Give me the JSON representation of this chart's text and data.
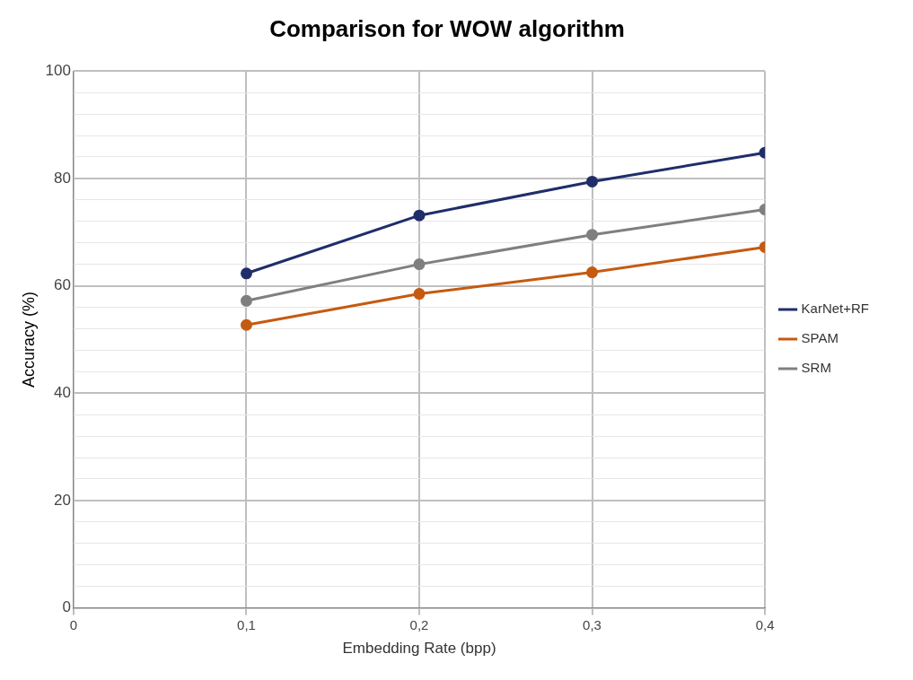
{
  "chart_data": {
    "type": "line",
    "title": "Comparison for WOW algorithm",
    "xlabel": "Embedding Rate (bpp)",
    "ylabel": "Accuracy (%)",
    "x": [
      0.1,
      0.2,
      0.3,
      0.4
    ],
    "series": [
      {
        "name": "KarNet+RF",
        "color": "#1f2d6b",
        "values": [
          62.3,
          73.1,
          79.4,
          84.8
        ]
      },
      {
        "name": "SPAM",
        "color": "#c55a11",
        "values": [
          52.7,
          58.5,
          62.5,
          67.2
        ]
      },
      {
        "name": "SRM",
        "color": "#7f7f7f",
        "values": [
          57.2,
          64.0,
          69.5,
          74.2
        ]
      }
    ],
    "xlim": [
      0,
      0.4
    ],
    "xticks": [
      0,
      {
        "value": 0.1,
        "label": "0,1"
      },
      {
        "value": 0.2,
        "label": "0,2"
      },
      {
        "value": 0.3,
        "label": "0,3"
      },
      {
        "value": 0.4,
        "label": "0,4"
      }
    ],
    "ylim": [
      0,
      100
    ],
    "yticks": [
      0,
      {
        "value": 4,
        "label": null
      },
      {
        "value": 8,
        "label": null
      },
      {
        "value": 12,
        "label": null
      },
      {
        "value": 16,
        "label": null
      },
      20,
      {
        "value": 24,
        "label": null
      },
      {
        "value": 28,
        "label": null
      },
      {
        "value": 32,
        "label": null
      },
      {
        "value": 36,
        "label": null
      },
      40,
      {
        "value": 44,
        "label": null
      },
      {
        "value": 48,
        "label": null
      },
      {
        "value": 52,
        "label": null
      },
      {
        "value": 56,
        "label": null
      },
      60,
      {
        "value": 64,
        "label": null
      },
      {
        "value": 68,
        "label": null
      },
      {
        "value": 72,
        "label": null
      },
      {
        "value": 76,
        "label": null
      },
      80,
      {
        "value": 84,
        "label": null
      },
      {
        "value": 88,
        "label": null
      },
      {
        "value": 92,
        "label": null
      },
      {
        "value": 96,
        "label": null
      },
      100
    ],
    "grid": true,
    "legend": "right",
    "marker": "circle",
    "line_style": "solid"
  }
}
